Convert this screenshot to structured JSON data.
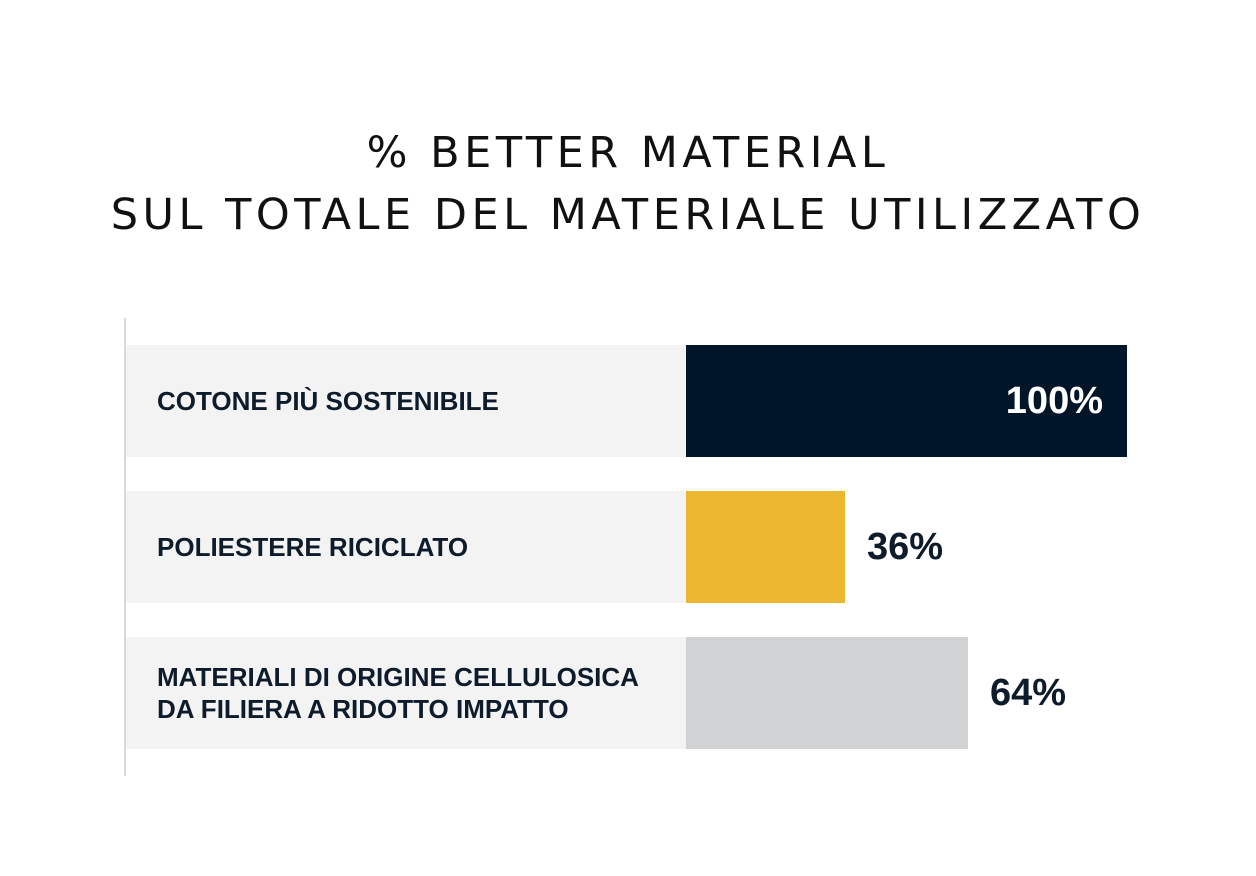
{
  "chart_data": {
    "type": "bar",
    "orientation": "horizontal",
    "title_lines": [
      "% BETTER MATERIAL",
      "SUL TOTALE DEL MATERIALE UTILIZZATO"
    ],
    "unit": "%",
    "xlim": [
      0,
      100
    ],
    "categories": [
      "COTONE PIÙ SOSTENIBILE",
      "POLIESTERE RICICLATO",
      "MATERIALI DI ORIGINE CELLULOSICA\nDA FILIERA A RIDOTTO IMPATTO"
    ],
    "values": [
      100,
      36,
      64
    ],
    "value_labels": [
      "100%",
      "36%",
      "64%"
    ],
    "colors": [
      "#001628",
      "#EBB72E",
      "#D1D2D4"
    ],
    "label_background": "#F3F3F3",
    "grid": false,
    "legend": false
  }
}
